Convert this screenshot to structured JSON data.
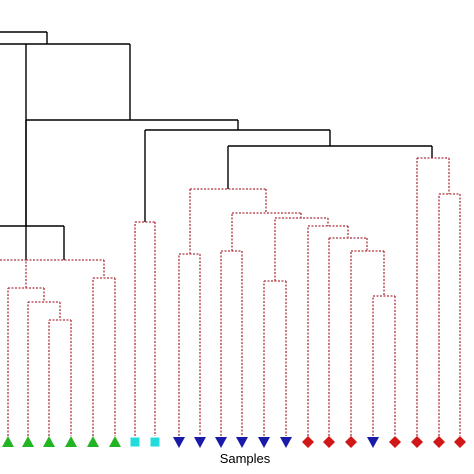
{
  "xlabel": "Samples",
  "colors": {
    "upper_links": "#000000",
    "lower_links": "#b0323c",
    "groups": {
      "green": "#22b422",
      "cyan": "#22dcdc",
      "blue": "#1a1aa8",
      "red": "#d01818"
    }
  },
  "leaves": [
    {
      "marker": "triangle-up",
      "color": "green"
    },
    {
      "marker": "triangle-up",
      "color": "green"
    },
    {
      "marker": "triangle-up",
      "color": "green"
    },
    {
      "marker": "triangle-up",
      "color": "green"
    },
    {
      "marker": "triangle-up",
      "color": "green"
    },
    {
      "marker": "triangle-up",
      "color": "green"
    },
    {
      "marker": "square",
      "color": "cyan"
    },
    {
      "marker": "square",
      "color": "cyan"
    },
    {
      "marker": "triangle-down",
      "color": "blue"
    },
    {
      "marker": "triangle-down",
      "color": "blue"
    },
    {
      "marker": "triangle-down",
      "color": "blue"
    },
    {
      "marker": "triangle-down",
      "color": "blue"
    },
    {
      "marker": "triangle-down",
      "color": "blue"
    },
    {
      "marker": "triangle-down",
      "color": "blue"
    },
    {
      "marker": "diamond",
      "color": "red"
    },
    {
      "marker": "diamond",
      "color": "red"
    },
    {
      "marker": "diamond",
      "color": "red"
    },
    {
      "marker": "triangle-down",
      "color": "blue"
    },
    {
      "marker": "diamond",
      "color": "red"
    },
    {
      "marker": "diamond",
      "color": "red"
    },
    {
      "marker": "diamond",
      "color": "red"
    },
    {
      "marker": "diamond",
      "color": "red"
    }
  ]
}
